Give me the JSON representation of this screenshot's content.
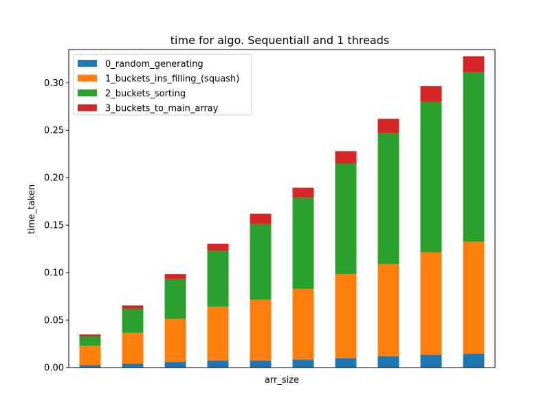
{
  "chart_data": {
    "type": "bar",
    "stacked": true,
    "title": "time for algo. Sequentiall and 1 threads",
    "xlabel": "arr_size",
    "ylabel": "time_taken",
    "ylim": [
      0,
      0.335
    ],
    "yticks": [
      "0.00",
      "0.05",
      "0.10",
      "0.15",
      "0.20",
      "0.25",
      "0.30"
    ],
    "categories": [
      "",
      "",
      "",
      "",
      "",
      "",
      "",
      "",
      "",
      ""
    ],
    "legend_position": "top-left",
    "grid": false,
    "series": [
      {
        "name": "0_random_generating",
        "color": "#1f77b4",
        "values": [
          0.0025,
          0.004,
          0.006,
          0.0075,
          0.0075,
          0.0085,
          0.01,
          0.012,
          0.0135,
          0.0145
        ]
      },
      {
        "name": "1_buckets_ins_filling_(squash)",
        "color": "#ff7f0e",
        "values": [
          0.0205,
          0.0325,
          0.0455,
          0.0565,
          0.064,
          0.0745,
          0.0885,
          0.097,
          0.108,
          0.118
        ]
      },
      {
        "name": "2_buckets_sorting",
        "color": "#2ca02c",
        "values": [
          0.01,
          0.0255,
          0.0415,
          0.059,
          0.0795,
          0.096,
          0.1165,
          0.138,
          0.1585,
          0.1785
        ]
      },
      {
        "name": "3_buckets_to_main_array",
        "color": "#d62728",
        "values": [
          0.002,
          0.0035,
          0.0055,
          0.0075,
          0.011,
          0.0105,
          0.013,
          0.015,
          0.0165,
          0.017
        ]
      }
    ]
  }
}
